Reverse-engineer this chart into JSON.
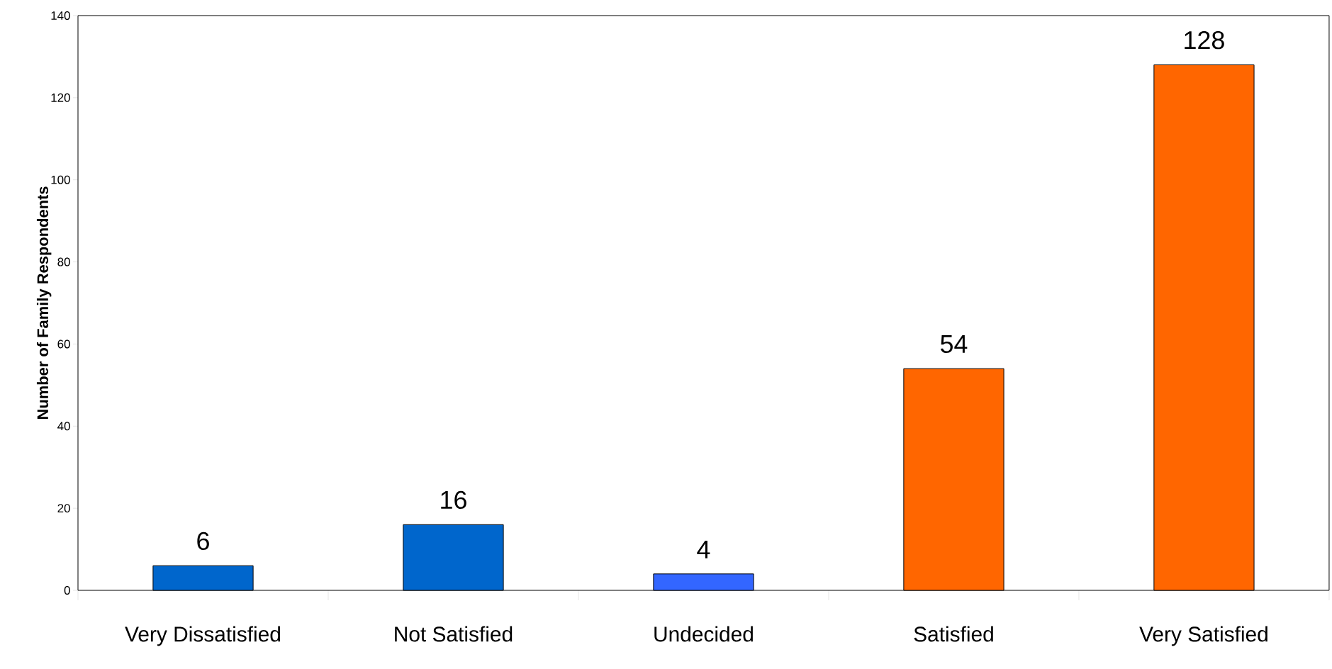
{
  "chart_data": {
    "type": "bar",
    "ylabel": "Number of Family Respondents",
    "categories": [
      "Very Dissatisfied",
      "Not Satisfied",
      "Undecided",
      "Satisfied",
      "Very Satisfied"
    ],
    "values": [
      6,
      16,
      4,
      54,
      128
    ],
    "colors": [
      "#0066cc",
      "#0066cc",
      "#3366ff",
      "#ff6600",
      "#ff6600"
    ],
    "ylim": [
      0,
      140
    ],
    "yticks": [
      0,
      20,
      40,
      60,
      80,
      100,
      120,
      140
    ],
    "data_labels": true
  }
}
